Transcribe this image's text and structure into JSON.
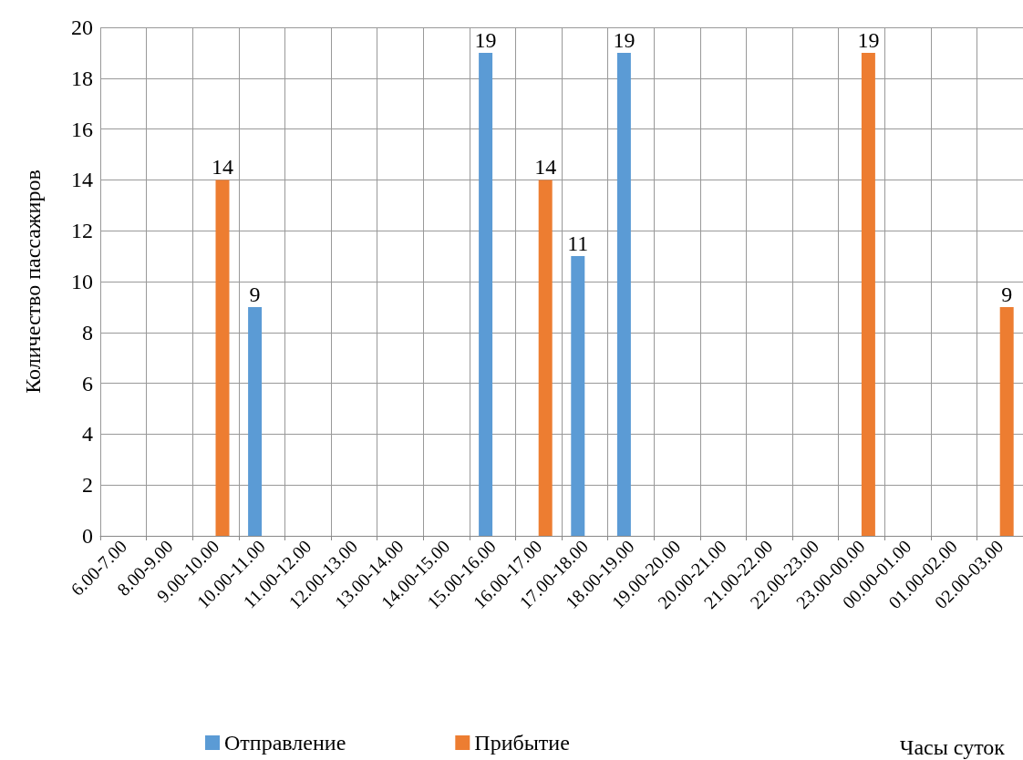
{
  "chart_data": {
    "type": "bar",
    "annotations": [
      "Часы суток"
    ],
    "ylabel": "Количество пассажиров",
    "categories": [
      "6.00-7.00",
      "8.00-9.00",
      "9.00-10.00",
      "10.00-11.00",
      "11.00-12.00",
      "12.00-13.00",
      "13.00-14.00",
      "14.00-15.00",
      "15.00-16.00",
      "16.00-17.00",
      "17.00-18.00",
      "18.00-19.00",
      "19.00-20.00",
      "20.00-21.00",
      "21.00-22.00",
      "22.00-23.00",
      "23.00-00.00",
      "00.00-01.00",
      "01.00-02.00",
      "02.00-03.00"
    ],
    "series": [
      {
        "name": "Отправление",
        "color": "#5b9bd5",
        "values": [
          null,
          null,
          null,
          9,
          null,
          null,
          null,
          null,
          19,
          null,
          11,
          19,
          null,
          null,
          null,
          null,
          null,
          null,
          null,
          null
        ]
      },
      {
        "name": "Прибытие",
        "color": "#ed7d31",
        "values": [
          null,
          null,
          14,
          null,
          null,
          null,
          null,
          null,
          null,
          14,
          null,
          null,
          null,
          null,
          null,
          null,
          19,
          null,
          null,
          9
        ]
      }
    ],
    "ylim": [
      0,
      20
    ],
    "yticks": [
      0,
      2,
      4,
      6,
      8,
      10,
      12,
      14,
      16,
      18,
      20
    ],
    "grid": true,
    "legend": "bottom",
    "data_labels": true
  }
}
